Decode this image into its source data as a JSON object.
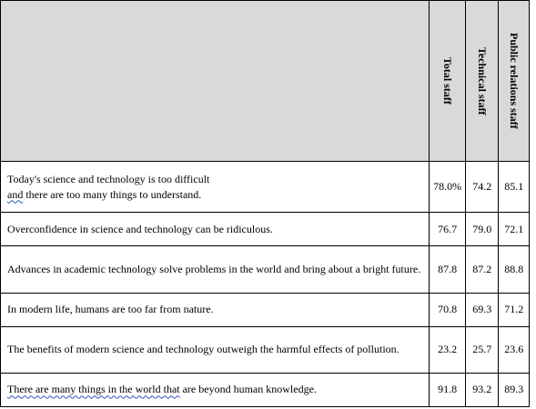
{
  "table": {
    "headers": {
      "statement": "",
      "total": "Total staff",
      "technical": "Technical staff",
      "public_relations": "Public relations staff"
    },
    "rows": [
      {
        "line1": "Today's science and technology is too difficult",
        "line2_prefix": "and",
        "line2_rest": " there are too many things to understand.",
        "total": "78.0%",
        "technical": "74.2",
        "public_relations": "85.1"
      },
      {
        "statement": "Overconfidence in science and technology can be ridiculous.",
        "total": "76.7",
        "technical": "79.0",
        "public_relations": "72.1"
      },
      {
        "statement": "Advances in academic technology solve problems in the world and bring about a bright future.",
        "total": "87.8",
        "technical": "87.2",
        "public_relations": "88.8"
      },
      {
        "statement": "In modern life, humans are too far from nature.",
        "total": "70.8",
        "technical": "69.3",
        "public_relations": "71.2"
      },
      {
        "statement": "The benefits of modern science and technology outweigh the harmful effects of pollution.",
        "total": "23.2",
        "technical": "25.7",
        "public_relations": "23.6"
      },
      {
        "statement_underlined": "There are many things in the world that",
        "statement_rest": " are beyond human knowledge.",
        "total": "91.8",
        "technical": "93.2",
        "public_relations": "89.3"
      }
    ]
  }
}
